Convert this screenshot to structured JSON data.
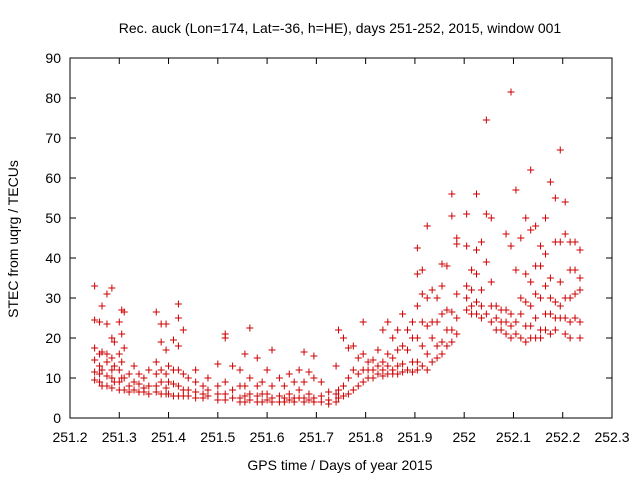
{
  "chart_data": {
    "type": "scatter",
    "title": "Rec. auck (Lon=174, Lat=-36, h=HE), days 251-252, 2015, window 001",
    "xlabel": "GPS time / Days of year 2015",
    "ylabel": "STEC from uqrg / TECUs",
    "xlim": [
      251.2,
      252.3
    ],
    "ylim": [
      0,
      90
    ],
    "xticks": [
      "251.2",
      "251.3",
      "251.4",
      "251.5",
      "251.6",
      "251.7",
      "251.8",
      "251.9",
      "252",
      "252.1",
      "252.2",
      "252.3"
    ],
    "yticks": [
      "0",
      "10",
      "20",
      "30",
      "40",
      "50",
      "60",
      "70",
      "80",
      "90"
    ],
    "grid": false,
    "legend": "none",
    "marker": "plus",
    "color": "#cc0000",
    "points": [
      [
        251.25,
        33
      ],
      [
        251.25,
        24.5
      ],
      [
        251.25,
        17.5
      ],
      [
        251.25,
        14.5
      ],
      [
        251.25,
        11.5
      ],
      [
        251.25,
        9.5
      ],
      [
        251.26,
        24
      ],
      [
        251.26,
        16
      ],
      [
        251.26,
        13
      ],
      [
        251.26,
        11
      ],
      [
        251.26,
        9
      ],
      [
        251.265,
        28
      ],
      [
        251.265,
        16.5
      ],
      [
        251.265,
        12
      ],
      [
        251.265,
        8
      ],
      [
        251.275,
        31
      ],
      [
        251.275,
        23.5
      ],
      [
        251.275,
        16
      ],
      [
        251.275,
        14
      ],
      [
        251.275,
        10.5
      ],
      [
        251.275,
        8
      ],
      [
        251.285,
        32.5
      ],
      [
        251.285,
        20
      ],
      [
        251.285,
        15
      ],
      [
        251.285,
        12
      ],
      [
        251.285,
        10
      ],
      [
        251.285,
        7.5
      ],
      [
        251.29,
        19
      ],
      [
        251.29,
        13
      ],
      [
        251.29,
        9
      ],
      [
        251.3,
        24
      ],
      [
        251.3,
        16
      ],
      [
        251.3,
        12
      ],
      [
        251.3,
        9
      ],
      [
        251.3,
        7
      ],
      [
        251.305,
        27
      ],
      [
        251.305,
        21
      ],
      [
        251.305,
        14
      ],
      [
        251.305,
        10
      ],
      [
        251.31,
        26.5
      ],
      [
        251.31,
        17.5
      ],
      [
        251.31,
        10
      ],
      [
        251.31,
        7
      ],
      [
        251.32,
        11
      ],
      [
        251.32,
        8
      ],
      [
        251.32,
        6.5
      ],
      [
        251.33,
        13
      ],
      [
        251.33,
        9
      ],
      [
        251.33,
        7
      ],
      [
        251.34,
        11
      ],
      [
        251.34,
        8.5
      ],
      [
        251.34,
        6.5
      ],
      [
        251.35,
        10
      ],
      [
        251.35,
        7.5
      ],
      [
        251.35,
        6.5
      ],
      [
        251.36,
        12
      ],
      [
        251.36,
        8
      ],
      [
        251.36,
        6
      ],
      [
        251.375,
        26.5
      ],
      [
        251.375,
        14
      ],
      [
        251.375,
        11
      ],
      [
        251.375,
        8
      ],
      [
        251.375,
        6.5
      ],
      [
        251.385,
        23.5
      ],
      [
        251.385,
        19
      ],
      [
        251.385,
        12
      ],
      [
        251.385,
        9
      ],
      [
        251.385,
        6
      ],
      [
        251.395,
        23.5
      ],
      [
        251.395,
        17
      ],
      [
        251.395,
        11
      ],
      [
        251.395,
        7.5
      ],
      [
        251.395,
        6
      ],
      [
        251.4,
        13
      ],
      [
        251.4,
        9
      ],
      [
        251.4,
        6
      ],
      [
        251.41,
        19.5
      ],
      [
        251.41,
        12
      ],
      [
        251.41,
        8.5
      ],
      [
        251.41,
        5.5
      ],
      [
        251.42,
        28.5
      ],
      [
        251.42,
        25
      ],
      [
        251.42,
        18
      ],
      [
        251.42,
        12
      ],
      [
        251.42,
        8
      ],
      [
        251.42,
        5.5
      ],
      [
        251.43,
        22
      ],
      [
        251.43,
        11
      ],
      [
        251.43,
        7
      ],
      [
        251.43,
        5.5
      ],
      [
        251.44,
        10
      ],
      [
        251.44,
        7
      ],
      [
        251.44,
        5.5
      ],
      [
        251.455,
        12
      ],
      [
        251.455,
        9
      ],
      [
        251.455,
        6.5
      ],
      [
        251.455,
        5
      ],
      [
        251.47,
        8
      ],
      [
        251.47,
        6
      ],
      [
        251.47,
        5
      ],
      [
        251.48,
        10
      ],
      [
        251.48,
        7
      ],
      [
        251.48,
        5.5
      ],
      [
        251.5,
        13.5
      ],
      [
        251.5,
        8
      ],
      [
        251.5,
        6
      ],
      [
        251.5,
        4.5
      ],
      [
        251.515,
        21
      ],
      [
        251.515,
        20
      ],
      [
        251.515,
        9
      ],
      [
        251.515,
        6
      ],
      [
        251.515,
        4.5
      ],
      [
        251.53,
        13
      ],
      [
        251.53,
        7
      ],
      [
        251.53,
        5
      ],
      [
        251.545,
        12
      ],
      [
        251.545,
        8
      ],
      [
        251.545,
        5
      ],
      [
        251.545,
        4
      ],
      [
        251.555,
        16
      ],
      [
        251.555,
        8
      ],
      [
        251.555,
        5.5
      ],
      [
        251.555,
        4
      ],
      [
        251.565,
        22.5
      ],
      [
        251.565,
        10
      ],
      [
        251.565,
        6
      ],
      [
        251.565,
        4.5
      ],
      [
        251.58,
        15
      ],
      [
        251.58,
        8
      ],
      [
        251.58,
        5.5
      ],
      [
        251.58,
        4
      ],
      [
        251.59,
        9
      ],
      [
        251.59,
        6
      ],
      [
        251.59,
        4
      ],
      [
        251.6,
        12
      ],
      [
        251.6,
        6
      ],
      [
        251.6,
        4.5
      ],
      [
        251.61,
        17
      ],
      [
        251.61,
        8
      ],
      [
        251.61,
        5
      ],
      [
        251.61,
        4
      ],
      [
        251.625,
        10
      ],
      [
        251.625,
        5.5
      ],
      [
        251.625,
        4
      ],
      [
        251.635,
        8
      ],
      [
        251.635,
        5
      ],
      [
        251.635,
        4
      ],
      [
        251.645,
        11
      ],
      [
        251.645,
        6
      ],
      [
        251.645,
        4.5
      ],
      [
        251.655,
        9
      ],
      [
        251.655,
        5
      ],
      [
        251.655,
        4
      ],
      [
        251.665,
        12
      ],
      [
        251.665,
        7
      ],
      [
        251.665,
        5
      ],
      [
        251.675,
        16.5
      ],
      [
        251.675,
        9
      ],
      [
        251.675,
        5
      ],
      [
        251.675,
        4
      ],
      [
        251.685,
        11.5
      ],
      [
        251.685,
        6
      ],
      [
        251.685,
        4.5
      ],
      [
        251.695,
        15.5
      ],
      [
        251.695,
        10
      ],
      [
        251.695,
        5
      ],
      [
        251.695,
        4
      ],
      [
        251.71,
        9
      ],
      [
        251.71,
        5.5
      ],
      [
        251.71,
        4
      ],
      [
        251.725,
        6.5
      ],
      [
        251.725,
        4.5
      ],
      [
        251.725,
        3.5
      ],
      [
        251.74,
        13
      ],
      [
        251.74,
        6
      ],
      [
        251.74,
        4
      ],
      [
        251.745,
        22
      ],
      [
        251.745,
        7
      ],
      [
        251.745,
        5
      ],
      [
        251.755,
        20
      ],
      [
        251.755,
        8
      ],
      [
        251.755,
        5.5
      ],
      [
        251.765,
        17.5
      ],
      [
        251.765,
        10
      ],
      [
        251.765,
        6
      ],
      [
        251.775,
        18
      ],
      [
        251.775,
        12
      ],
      [
        251.775,
        7
      ],
      [
        251.785,
        15
      ],
      [
        251.785,
        11
      ],
      [
        251.785,
        8
      ],
      [
        251.795,
        24
      ],
      [
        251.795,
        16
      ],
      [
        251.795,
        12
      ],
      [
        251.795,
        9
      ],
      [
        251.805,
        14
      ],
      [
        251.805,
        12
      ],
      [
        251.805,
        10
      ],
      [
        251.815,
        14.5
      ],
      [
        251.815,
        12
      ],
      [
        251.815,
        10
      ],
      [
        251.825,
        17
      ],
      [
        251.825,
        13
      ],
      [
        251.825,
        11
      ],
      [
        251.835,
        22
      ],
      [
        251.835,
        14
      ],
      [
        251.835,
        12
      ],
      [
        251.835,
        10.5
      ],
      [
        251.845,
        24
      ],
      [
        251.845,
        16
      ],
      [
        251.845,
        13
      ],
      [
        251.845,
        11
      ],
      [
        251.855,
        20
      ],
      [
        251.855,
        15
      ],
      [
        251.855,
        12
      ],
      [
        251.855,
        11
      ],
      [
        251.865,
        22
      ],
      [
        251.865,
        17
      ],
      [
        251.865,
        13
      ],
      [
        251.865,
        11
      ],
      [
        251.875,
        26
      ],
      [
        251.875,
        18
      ],
      [
        251.875,
        13.5
      ],
      [
        251.875,
        11.5
      ],
      [
        251.885,
        22
      ],
      [
        251.885,
        17
      ],
      [
        251.885,
        12
      ],
      [
        251.895,
        24
      ],
      [
        251.895,
        20
      ],
      [
        251.895,
        14
      ],
      [
        251.895,
        11.5
      ],
      [
        251.905,
        42.5
      ],
      [
        251.905,
        36
      ],
      [
        251.905,
        28
      ],
      [
        251.905,
        20
      ],
      [
        251.905,
        14
      ],
      [
        251.905,
        12
      ],
      [
        251.915,
        37
      ],
      [
        251.915,
        31
      ],
      [
        251.915,
        24
      ],
      [
        251.915,
        18
      ],
      [
        251.915,
        13
      ],
      [
        251.925,
        48
      ],
      [
        251.925,
        30
      ],
      [
        251.925,
        23
      ],
      [
        251.925,
        16
      ],
      [
        251.925,
        12
      ],
      [
        251.935,
        32
      ],
      [
        251.935,
        24
      ],
      [
        251.935,
        20
      ],
      [
        251.935,
        14
      ],
      [
        251.945,
        30
      ],
      [
        251.945,
        24
      ],
      [
        251.945,
        18
      ],
      [
        251.945,
        15
      ],
      [
        251.955,
        38.5
      ],
      [
        251.955,
        33
      ],
      [
        251.955,
        26
      ],
      [
        251.955,
        19
      ],
      [
        251.955,
        16
      ],
      [
        251.965,
        38
      ],
      [
        251.965,
        27
      ],
      [
        251.965,
        22
      ],
      [
        251.965,
        18
      ],
      [
        251.975,
        56
      ],
      [
        251.975,
        50.5
      ],
      [
        251.975,
        26.5
      ],
      [
        251.975,
        22
      ],
      [
        251.975,
        19
      ],
      [
        251.985,
        45
      ],
      [
        251.985,
        43.5
      ],
      [
        251.985,
        31
      ],
      [
        251.985,
        25
      ],
      [
        251.985,
        21
      ],
      [
        252.005,
        51
      ],
      [
        252.005,
        43
      ],
      [
        252.005,
        33
      ],
      [
        252.005,
        30
      ],
      [
        252.005,
        27
      ],
      [
        252.015,
        37
      ],
      [
        252.015,
        32
      ],
      [
        252.015,
        28
      ],
      [
        252.015,
        26
      ],
      [
        252.025,
        56
      ],
      [
        252.025,
        42
      ],
      [
        252.025,
        36
      ],
      [
        252.025,
        29
      ],
      [
        252.025,
        26
      ],
      [
        252.035,
        44
      ],
      [
        252.035,
        32
      ],
      [
        252.035,
        28
      ],
      [
        252.035,
        25
      ],
      [
        252.045,
        74.5
      ],
      [
        252.045,
        51
      ],
      [
        252.045,
        39
      ],
      [
        252.045,
        26
      ],
      [
        252.055,
        50
      ],
      [
        252.055,
        34
      ],
      [
        252.055,
        28
      ],
      [
        252.055,
        24
      ],
      [
        252.065,
        28
      ],
      [
        252.065,
        25
      ],
      [
        252.065,
        22
      ],
      [
        252.075,
        27
      ],
      [
        252.075,
        24
      ],
      [
        252.075,
        22
      ],
      [
        252.085,
        46
      ],
      [
        252.085,
        27
      ],
      [
        252.085,
        24
      ],
      [
        252.085,
        21
      ],
      [
        252.095,
        81.5
      ],
      [
        252.095,
        43
      ],
      [
        252.095,
        26
      ],
      [
        252.095,
        23
      ],
      [
        252.095,
        20
      ],
      [
        252.105,
        57
      ],
      [
        252.105,
        37
      ],
      [
        252.105,
        24
      ],
      [
        252.105,
        21
      ],
      [
        252.115,
        45
      ],
      [
        252.115,
        30
      ],
      [
        252.115,
        26
      ],
      [
        252.115,
        20
      ],
      [
        252.125,
        50
      ],
      [
        252.125,
        36
      ],
      [
        252.125,
        29
      ],
      [
        252.125,
        23
      ],
      [
        252.125,
        19
      ],
      [
        252.135,
        62
      ],
      [
        252.135,
        47
      ],
      [
        252.135,
        34
      ],
      [
        252.135,
        28
      ],
      [
        252.135,
        23
      ],
      [
        252.135,
        20
      ],
      [
        252.145,
        48
      ],
      [
        252.145,
        38
      ],
      [
        252.145,
        31
      ],
      [
        252.145,
        25
      ],
      [
        252.145,
        20
      ],
      [
        252.155,
        43
      ],
      [
        252.155,
        38
      ],
      [
        252.155,
        30
      ],
      [
        252.155,
        22
      ],
      [
        252.155,
        20
      ],
      [
        252.165,
        50
      ],
      [
        252.165,
        41
      ],
      [
        252.165,
        33
      ],
      [
        252.165,
        26
      ],
      [
        252.165,
        22
      ],
      [
        252.175,
        59
      ],
      [
        252.175,
        35
      ],
      [
        252.175,
        30
      ],
      [
        252.175,
        26
      ],
      [
        252.175,
        21
      ],
      [
        252.185,
        55
      ],
      [
        252.185,
        44
      ],
      [
        252.185,
        29
      ],
      [
        252.185,
        25
      ],
      [
        252.185,
        22
      ],
      [
        252.195,
        67
      ],
      [
        252.195,
        44
      ],
      [
        252.195,
        34
      ],
      [
        252.195,
        28
      ],
      [
        252.195,
        25
      ],
      [
        252.205,
        54
      ],
      [
        252.205,
        46
      ],
      [
        252.205,
        30
      ],
      [
        252.205,
        25
      ],
      [
        252.205,
        21
      ],
      [
        252.215,
        44
      ],
      [
        252.215,
        37
      ],
      [
        252.215,
        30
      ],
      [
        252.215,
        24
      ],
      [
        252.215,
        20
      ],
      [
        252.225,
        44
      ],
      [
        252.225,
        37
      ],
      [
        252.225,
        31
      ],
      [
        252.225,
        25
      ],
      [
        252.235,
        42
      ],
      [
        252.235,
        35
      ],
      [
        252.235,
        32
      ],
      [
        252.235,
        24
      ],
      [
        252.235,
        20
      ]
    ]
  }
}
